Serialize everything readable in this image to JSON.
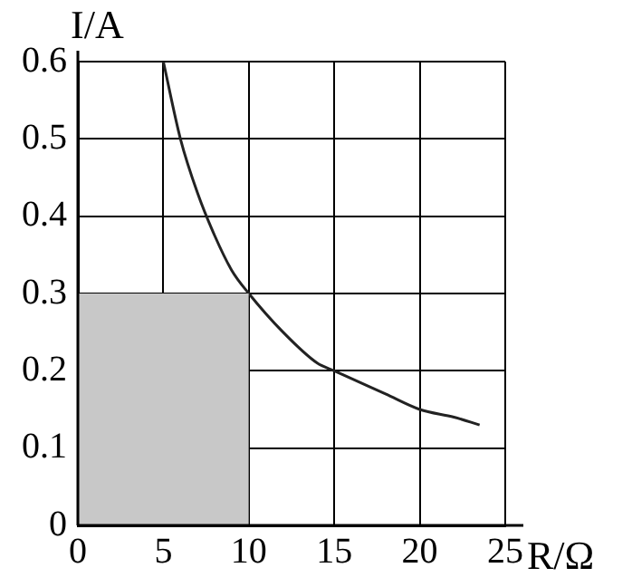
{
  "chart_data": {
    "type": "line",
    "xlabel": "R/Ω",
    "ylabel": "I/A",
    "xlim": [
      0,
      25
    ],
    "ylim": [
      0,
      0.6
    ],
    "xticks": [
      0,
      5,
      10,
      15,
      20,
      25
    ],
    "yticks": [
      0,
      0.1,
      0.2,
      0.3,
      0.4,
      0.5,
      0.6
    ],
    "grid": true,
    "legend": false,
    "marker": "none",
    "series": [
      {
        "type": "area",
        "color": "#c8c8c8",
        "x": [
          0,
          10
        ],
        "values": [
          0.3,
          0.3
        ]
      },
      {
        "color": "#222222",
        "x": [
          5,
          6,
          7,
          8,
          9,
          10,
          12,
          14,
          15,
          16,
          18,
          20,
          22,
          23.5
        ],
        "values": [
          0.6,
          0.5,
          0.43,
          0.375,
          0.33,
          0.3,
          0.25,
          0.21,
          0.2,
          0.19,
          0.17,
          0.15,
          0.14,
          0.13
        ]
      }
    ]
  }
}
